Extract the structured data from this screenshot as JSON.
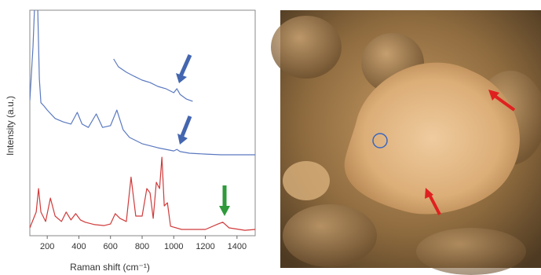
{
  "chart_data": {
    "type": "line",
    "xlabel": "Raman shift (cm⁻¹)",
    "ylabel": "Intensity (a.u.)",
    "xlim": [
      90,
      1515
    ],
    "ylim": [
      0,
      100
    ],
    "xticks": [
      200,
      400,
      600,
      800,
      1000,
      1200,
      1400
    ],
    "series": [
      {
        "color": "#5b79c0",
        "x": [
          90,
          110,
          125,
          140,
          150,
          160,
          180,
          200,
          250,
          300,
          350,
          390,
          420,
          460,
          510,
          550,
          600,
          640,
          680,
          720,
          800,
          900,
          1000,
          1020,
          1040,
          1100,
          1200,
          1300,
          1515
        ],
        "values": [
          60,
          83.6,
          110,
          100,
          69.7,
          59,
          57.5,
          55.7,
          52,
          50.5,
          49.5,
          54.7,
          49.5,
          48,
          54,
          48,
          48.8,
          55.7,
          47,
          43.6,
          40.8,
          39,
          37.6,
          38.3,
          37.3,
          36.6,
          36.2,
          35.9,
          35.9
        ]
      },
      {
        "color": "#5b79c0",
        "x": [
          620,
          650,
          700,
          750,
          800,
          850,
          900,
          950,
          1000,
          1020,
          1040,
          1080,
          1120
        ],
        "values": [
          78.4,
          74.9,
          72.5,
          70.7,
          69,
          67.9,
          66.2,
          65.2,
          63.4,
          65.2,
          62.7,
          60.6,
          59.6
        ]
      },
      {
        "color": "#d03a3a",
        "x": [
          90,
          130,
          145,
          160,
          190,
          220,
          250,
          290,
          320,
          350,
          380,
          410,
          440,
          500,
          560,
          600,
          630,
          660,
          700,
          730,
          760,
          800,
          830,
          850,
          870,
          890,
          910,
          925,
          940,
          960,
          980,
          1050,
          1200,
          1280,
          1310,
          1350,
          1450,
          1515
        ],
        "values": [
          3.5,
          10.5,
          20.9,
          10.5,
          6.3,
          16.7,
          8.7,
          6.3,
          10.5,
          7,
          9.8,
          7,
          6,
          4.9,
          4.5,
          5.2,
          9.8,
          7.7,
          6.3,
          26,
          8.7,
          8.7,
          20.9,
          19,
          7.7,
          23.7,
          20.9,
          34.8,
          13.2,
          14.6,
          4.2,
          2.8,
          2.8,
          5.2,
          6,
          3.5,
          2.4,
          2.8
        ]
      }
    ]
  }
}
